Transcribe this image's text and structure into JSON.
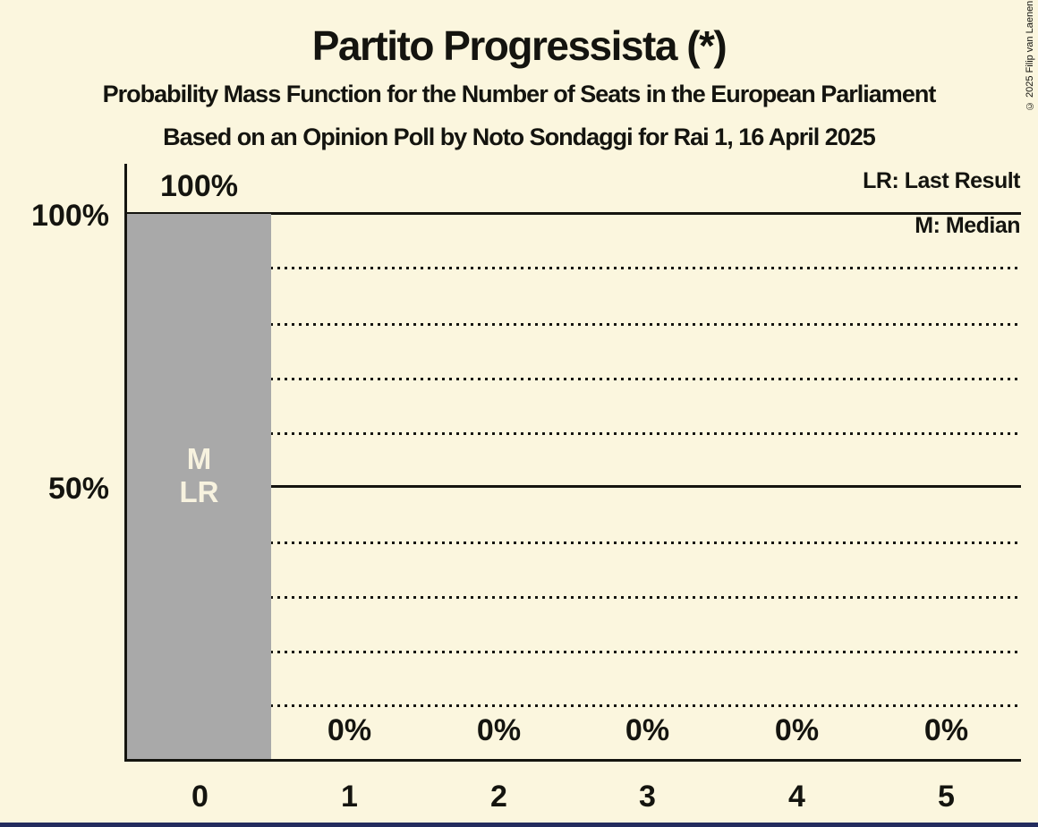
{
  "header": {
    "title": "Partito Progressista (*)",
    "subtitle": "Probability Mass Function for the Number of Seats in the European Parliament",
    "poll_line": "Based on an Opinion Poll by Noto Sondaggi for Rai 1, 16 April 2025"
  },
  "copyright": "© 2025 Filip van Laenen",
  "legend": {
    "last_result": "LR: Last Result",
    "median": "M: Median"
  },
  "y_axis": {
    "tick_100": "100%",
    "tick_50": "50%"
  },
  "colors": {
    "background": "#FBF6DE",
    "bar": "#A9A9A9",
    "ink": "#14140F",
    "marker_text": "#F7F2DF",
    "party_strip": "#232C5E"
  },
  "chart_data": {
    "type": "bar",
    "title": "Partito Progressista (*)",
    "subtitle": "Probability Mass Function for the Number of Seats in the European Parliament",
    "source_line": "Based on an Opinion Poll by Noto Sondaggi for Rai 1, 16 April 2025",
    "categories": [
      "0",
      "1",
      "2",
      "3",
      "4",
      "5"
    ],
    "values": [
      100,
      0,
      0,
      0,
      0,
      0
    ],
    "bar_labels": [
      "100%",
      "0%",
      "0%",
      "0%",
      "0%",
      "0%"
    ],
    "xlabel": "",
    "ylabel": "",
    "ylim": [
      0,
      100
    ],
    "ytick_labels": [
      "100%",
      "50%"
    ],
    "solid_gridlines_pct": [
      100,
      50
    ],
    "dotted_gridlines_pct": [
      90,
      80,
      70,
      60,
      40,
      30,
      20,
      10
    ],
    "grid": "on",
    "legend_entries": [
      "LR: Last Result",
      "M: Median"
    ],
    "legend_position": "top-right",
    "annotations": {
      "median_marker": "M",
      "last_result_marker": "LR",
      "median_category": "0",
      "last_result_category": "0"
    },
    "bar_color": "#A9A9A9",
    "background_color": "#FBF6DE"
  }
}
